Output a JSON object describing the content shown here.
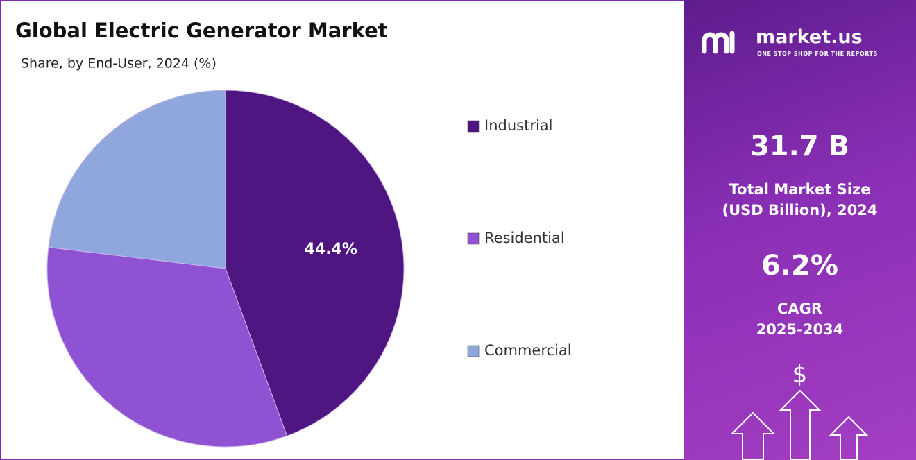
{
  "chart_data": {
    "type": "pie",
    "title": "Global Electric Generator Market",
    "subtitle": "Share, by End-User, 2024 (%)",
    "categories": [
      "Industrial",
      "Residential",
      "Commercial"
    ],
    "values": [
      44.4,
      32.5,
      23.1
    ],
    "value_labels": [
      "44.4%",
      null,
      null
    ],
    "colors": [
      "#4f1682",
      "#8f52d3",
      "#8fa7dc"
    ]
  },
  "panel": {
    "brand": "market.us",
    "tagline": "ONE STOP SHOP FOR THE REPORTS",
    "market_size": "31.7 B",
    "market_size_label": [
      "Total Market Size",
      "(USD Billion), 2024"
    ],
    "cagr": "6.2%",
    "cagr_label": [
      "CAGR",
      "2025-2034"
    ],
    "icon_symbol": "$"
  }
}
